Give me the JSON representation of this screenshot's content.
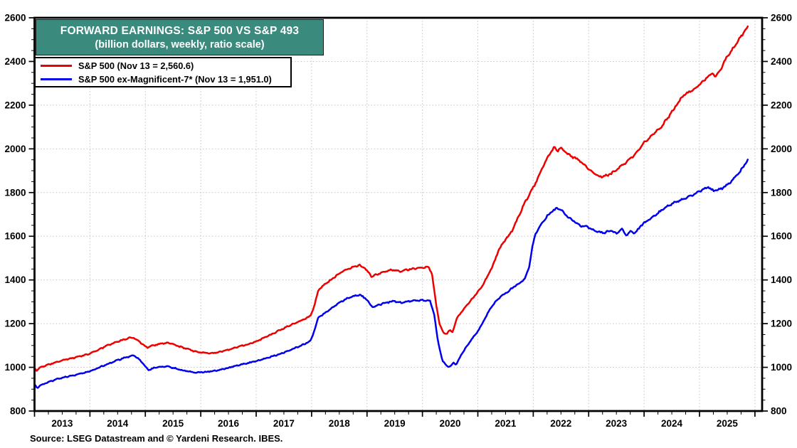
{
  "chart_data": {
    "type": "line",
    "title": "FORWARD EARNINGS: S&P 500 VS S&P 493",
    "subtitle": "(billion dollars, weekly, ratio scale)",
    "source": "Source: LSEG Datastream and © Yardeni Research. IBES.",
    "legend_position": "top-left",
    "grid": "dotted",
    "x_domain": [
      2013.0,
      2026.13
    ],
    "y_domain": [
      800,
      2600
    ],
    "y_ticks": [
      800,
      1000,
      1200,
      1400,
      1600,
      1800,
      2000,
      2200,
      2400,
      2600
    ],
    "y_minor_step": 50,
    "x_major_step": 1,
    "x_minor_step": 0.25,
    "year_labels": [
      2013,
      2014,
      2015,
      2016,
      2017,
      2018,
      2019,
      2020,
      2021,
      2022,
      2023,
      2024,
      2025
    ],
    "colors": {
      "title_bg": "#3a8a7e",
      "title_text": "#ffffff",
      "grid": "#c4c4c4",
      "axis": "#000000",
      "sp500": "#ee0000",
      "sp493": "#0000ee"
    },
    "series": [
      {
        "name": "S&P 500",
        "legend_label": "S&P 500 (Nov 13 = 2,560.6)",
        "color": "#ee0000",
        "last_date": "Nov 13",
        "last_value": 2560.6,
        "points": [
          [
            2013.0,
            997
          ],
          [
            2013.04,
            986
          ],
          [
            2013.12,
            1002
          ],
          [
            2013.25,
            1012
          ],
          [
            2013.4,
            1024
          ],
          [
            2013.55,
            1035
          ],
          [
            2013.7,
            1043
          ],
          [
            2013.85,
            1052
          ],
          [
            2014.0,
            1063
          ],
          [
            2014.15,
            1080
          ],
          [
            2014.3,
            1098
          ],
          [
            2014.45,
            1113
          ],
          [
            2014.6,
            1126
          ],
          [
            2014.7,
            1134
          ],
          [
            2014.78,
            1138
          ],
          [
            2014.87,
            1122
          ],
          [
            2014.96,
            1104
          ],
          [
            2015.04,
            1090
          ],
          [
            2015.13,
            1099
          ],
          [
            2015.25,
            1107
          ],
          [
            2015.38,
            1112
          ],
          [
            2015.5,
            1106
          ],
          [
            2015.63,
            1094
          ],
          [
            2015.77,
            1083
          ],
          [
            2015.9,
            1073
          ],
          [
            2016.03,
            1067
          ],
          [
            2016.16,
            1064
          ],
          [
            2016.3,
            1068
          ],
          [
            2016.45,
            1077
          ],
          [
            2016.6,
            1088
          ],
          [
            2016.75,
            1099
          ],
          [
            2016.9,
            1109
          ],
          [
            2017.0,
            1119
          ],
          [
            2017.15,
            1136
          ],
          [
            2017.3,
            1153
          ],
          [
            2017.45,
            1173
          ],
          [
            2017.6,
            1191
          ],
          [
            2017.75,
            1208
          ],
          [
            2017.9,
            1224
          ],
          [
            2017.98,
            1235
          ],
          [
            2018.05,
            1282
          ],
          [
            2018.12,
            1352
          ],
          [
            2018.22,
            1376
          ],
          [
            2018.35,
            1401
          ],
          [
            2018.48,
            1426
          ],
          [
            2018.62,
            1447
          ],
          [
            2018.75,
            1459
          ],
          [
            2018.87,
            1467
          ],
          [
            2018.97,
            1452
          ],
          [
            2019.08,
            1417
          ],
          [
            2019.2,
            1426
          ],
          [
            2019.33,
            1440
          ],
          [
            2019.46,
            1446
          ],
          [
            2019.58,
            1439
          ],
          [
            2019.7,
            1446
          ],
          [
            2019.84,
            1452
          ],
          [
            2019.97,
            1456
          ],
          [
            2020.1,
            1461
          ],
          [
            2020.17,
            1434
          ],
          [
            2020.24,
            1300
          ],
          [
            2020.31,
            1196
          ],
          [
            2020.38,
            1157
          ],
          [
            2020.44,
            1152
          ],
          [
            2020.49,
            1171
          ],
          [
            2020.54,
            1160
          ],
          [
            2020.62,
            1225
          ],
          [
            2020.73,
            1262
          ],
          [
            2020.85,
            1298
          ],
          [
            2020.95,
            1330
          ],
          [
            2021.05,
            1360
          ],
          [
            2021.15,
            1405
          ],
          [
            2021.27,
            1465
          ],
          [
            2021.38,
            1540
          ],
          [
            2021.5,
            1585
          ],
          [
            2021.62,
            1625
          ],
          [
            2021.75,
            1700
          ],
          [
            2021.85,
            1755
          ],
          [
            2021.95,
            1800
          ],
          [
            2022.05,
            1848
          ],
          [
            2022.15,
            1905
          ],
          [
            2022.25,
            1958
          ],
          [
            2022.33,
            1990
          ],
          [
            2022.38,
            2008
          ],
          [
            2022.44,
            1990
          ],
          [
            2022.49,
            2003
          ],
          [
            2022.58,
            1984
          ],
          [
            2022.7,
            1965
          ],
          [
            2022.82,
            1950
          ],
          [
            2022.93,
            1925
          ],
          [
            2023.04,
            1898
          ],
          [
            2023.14,
            1880
          ],
          [
            2023.24,
            1871
          ],
          [
            2023.35,
            1880
          ],
          [
            2023.46,
            1895
          ],
          [
            2023.58,
            1920
          ],
          [
            2023.7,
            1944
          ],
          [
            2023.82,
            1972
          ],
          [
            2023.91,
            2000
          ],
          [
            2024.0,
            2028
          ],
          [
            2024.15,
            2062
          ],
          [
            2024.3,
            2098
          ],
          [
            2024.45,
            2150
          ],
          [
            2024.6,
            2205
          ],
          [
            2024.72,
            2248
          ],
          [
            2024.85,
            2266
          ],
          [
            2024.95,
            2283
          ],
          [
            2025.05,
            2306
          ],
          [
            2025.15,
            2330
          ],
          [
            2025.24,
            2344
          ],
          [
            2025.3,
            2330
          ],
          [
            2025.38,
            2362
          ],
          [
            2025.48,
            2415
          ],
          [
            2025.58,
            2452
          ],
          [
            2025.68,
            2490
          ],
          [
            2025.76,
            2518
          ],
          [
            2025.82,
            2540
          ],
          [
            2025.87,
            2560.6
          ]
        ]
      },
      {
        "name": "S&P 500 ex-Magnificent-7*",
        "legend_label": "S&P 500 ex-Magnificent-7* (Nov 13 = 1,951.0)",
        "color": "#0000ee",
        "last_date": "Nov 13",
        "last_value": 1951.0,
        "points": [
          [
            2013.0,
            920
          ],
          [
            2013.05,
            906
          ],
          [
            2013.13,
            921
          ],
          [
            2013.26,
            933
          ],
          [
            2013.4,
            945
          ],
          [
            2013.54,
            955
          ],
          [
            2013.68,
            962
          ],
          [
            2013.83,
            971
          ],
          [
            2014.0,
            982
          ],
          [
            2014.15,
            997
          ],
          [
            2014.3,
            1013
          ],
          [
            2014.45,
            1028
          ],
          [
            2014.6,
            1042
          ],
          [
            2014.72,
            1050
          ],
          [
            2014.8,
            1054
          ],
          [
            2014.89,
            1036
          ],
          [
            2014.98,
            1010
          ],
          [
            2015.06,
            988
          ],
          [
            2015.15,
            997
          ],
          [
            2015.27,
            1002
          ],
          [
            2015.39,
            1005
          ],
          [
            2015.51,
            997
          ],
          [
            2015.64,
            988
          ],
          [
            2015.78,
            981
          ],
          [
            2015.92,
            976
          ],
          [
            2016.06,
            978
          ],
          [
            2016.2,
            982
          ],
          [
            2016.34,
            988
          ],
          [
            2016.48,
            996
          ],
          [
            2016.62,
            1007
          ],
          [
            2016.76,
            1014
          ],
          [
            2016.9,
            1022
          ],
          [
            2017.0,
            1029
          ],
          [
            2017.15,
            1040
          ],
          [
            2017.3,
            1051
          ],
          [
            2017.45,
            1063
          ],
          [
            2017.6,
            1078
          ],
          [
            2017.75,
            1093
          ],
          [
            2017.9,
            1110
          ],
          [
            2017.98,
            1121
          ],
          [
            2018.05,
            1168
          ],
          [
            2018.12,
            1227
          ],
          [
            2018.24,
            1249
          ],
          [
            2018.38,
            1276
          ],
          [
            2018.52,
            1299
          ],
          [
            2018.65,
            1316
          ],
          [
            2018.78,
            1326
          ],
          [
            2018.87,
            1332
          ],
          [
            2018.97,
            1316
          ],
          [
            2019.1,
            1275
          ],
          [
            2019.22,
            1287
          ],
          [
            2019.36,
            1297
          ],
          [
            2019.5,
            1303
          ],
          [
            2019.63,
            1296
          ],
          [
            2019.77,
            1303
          ],
          [
            2019.9,
            1306
          ],
          [
            2020.05,
            1307
          ],
          [
            2020.14,
            1303
          ],
          [
            2020.21,
            1245
          ],
          [
            2020.28,
            1120
          ],
          [
            2020.36,
            1030
          ],
          [
            2020.44,
            1006
          ],
          [
            2020.5,
            1002
          ],
          [
            2020.56,
            1022
          ],
          [
            2020.61,
            1012
          ],
          [
            2020.7,
            1058
          ],
          [
            2020.8,
            1095
          ],
          [
            2020.9,
            1132
          ],
          [
            2021.0,
            1165
          ],
          [
            2021.1,
            1210
          ],
          [
            2021.2,
            1258
          ],
          [
            2021.3,
            1295
          ],
          [
            2021.4,
            1322
          ],
          [
            2021.52,
            1342
          ],
          [
            2021.64,
            1366
          ],
          [
            2021.76,
            1388
          ],
          [
            2021.85,
            1405
          ],
          [
            2021.92,
            1452
          ],
          [
            2021.98,
            1545
          ],
          [
            2022.04,
            1612
          ],
          [
            2022.14,
            1655
          ],
          [
            2022.25,
            1692
          ],
          [
            2022.35,
            1716
          ],
          [
            2022.43,
            1728
          ],
          [
            2022.52,
            1716
          ],
          [
            2022.62,
            1690
          ],
          [
            2022.74,
            1668
          ],
          [
            2022.87,
            1645
          ],
          [
            2022.95,
            1648
          ],
          [
            2023.05,
            1632
          ],
          [
            2023.15,
            1620
          ],
          [
            2023.28,
            1615
          ],
          [
            2023.4,
            1628
          ],
          [
            2023.5,
            1613
          ],
          [
            2023.6,
            1631
          ],
          [
            2023.68,
            1604
          ],
          [
            2023.76,
            1626
          ],
          [
            2023.84,
            1613
          ],
          [
            2023.94,
            1648
          ],
          [
            2024.05,
            1670
          ],
          [
            2024.2,
            1696
          ],
          [
            2024.35,
            1726
          ],
          [
            2024.5,
            1748
          ],
          [
            2024.65,
            1765
          ],
          [
            2024.8,
            1780
          ],
          [
            2024.95,
            1798
          ],
          [
            2025.05,
            1812
          ],
          [
            2025.15,
            1826
          ],
          [
            2025.25,
            1808
          ],
          [
            2025.33,
            1812
          ],
          [
            2025.42,
            1820
          ],
          [
            2025.52,
            1840
          ],
          [
            2025.62,
            1862
          ],
          [
            2025.72,
            1892
          ],
          [
            2025.8,
            1922
          ],
          [
            2025.85,
            1942
          ],
          [
            2025.87,
            1951.0
          ]
        ]
      }
    ]
  }
}
